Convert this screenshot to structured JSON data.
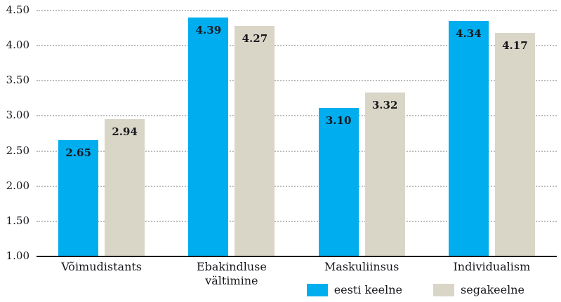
{
  "chart_data": {
    "type": "bar",
    "title": "",
    "xlabel": "",
    "ylabel": "",
    "categories": [
      "Võimudistants",
      "Ebakindluse\nvältimine",
      "Maskuliinsus",
      "Individualism"
    ],
    "series": [
      {
        "name": "eesti keelne",
        "color": "#00ADEE",
        "values": [
          2.65,
          4.39,
          3.1,
          4.34
        ],
        "labels": [
          "2.65",
          "4.39",
          "3.10",
          "4.34"
        ]
      },
      {
        "name": "segakeelne",
        "color": "#D9D6C7",
        "values": [
          2.94,
          4.27,
          3.32,
          4.17
        ],
        "labels": [
          "2.94",
          "4.27",
          "3.32",
          "4.17"
        ]
      }
    ],
    "ylim": [
      1.0,
      4.5
    ],
    "ytick_step": 0.5,
    "yticks": [
      "4.50",
      "4.00",
      "3.50",
      "3.00",
      "2.50",
      "2.00",
      "1.50",
      "1.00"
    ],
    "grid": "dotted-horizontal",
    "legend_position": "bottom-right"
  },
  "colors": {
    "text": "#17171d",
    "gridline": "#bcbcbc",
    "baseline": "#1a1a1a",
    "background": "#ffffff"
  }
}
